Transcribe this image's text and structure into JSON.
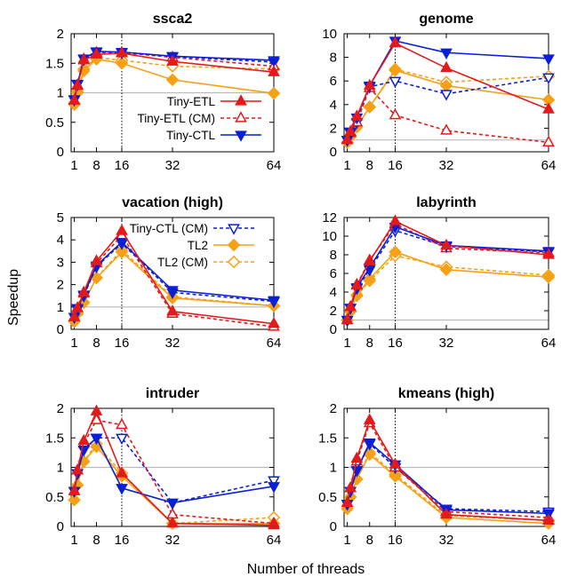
{
  "figure": {
    "ylabel": "Speedup",
    "xlabel": "Number of threads"
  },
  "colors": {
    "red": "#e31a1c",
    "blue": "#0a1fd6",
    "orange": "#f6a015",
    "baseline": "#bbbbbb",
    "marker_line": "#000000"
  },
  "legend": [
    {
      "name": "Tiny-ETL",
      "color": "#e31a1c",
      "dash": false,
      "marker": "triangle-up",
      "filled": true
    },
    {
      "name": "Tiny-ETL (CM)",
      "color": "#e31a1c",
      "dash": true,
      "marker": "triangle-up",
      "filled": false
    },
    {
      "name": "Tiny-CTL",
      "color": "#0a1fd6",
      "dash": false,
      "marker": "triangle-down",
      "filled": true
    },
    {
      "name": "Tiny-CTL (CM)",
      "color": "#0a1fd6",
      "dash": true,
      "marker": "triangle-down",
      "filled": false
    },
    {
      "name": "TL2",
      "color": "#f6a015",
      "dash": false,
      "marker": "diamond",
      "filled": true
    },
    {
      "name": "TL2 (CM)",
      "color": "#f6a015",
      "dash": true,
      "marker": "diamond",
      "filled": false
    }
  ],
  "chart_data": [
    {
      "type": "line",
      "title": "ssca2",
      "xlabel": "Number of threads",
      "ylabel": "Speedup",
      "x": [
        1,
        2,
        4,
        8,
        16,
        32,
        64
      ],
      "xticks": [
        1,
        8,
        16,
        32,
        64
      ],
      "xlim": [
        0,
        64
      ],
      "ylim": [
        0,
        2
      ],
      "yticks": [
        0,
        0.5,
        1,
        1.5,
        2
      ],
      "yticklabels": [
        "0",
        "0.5",
        "1",
        "1.5",
        "2"
      ],
      "reference_line_y": 1,
      "marker_line_x": 16,
      "legend_entries": [
        "Tiny-ETL",
        "Tiny-ETL (CM)",
        "Tiny-CTL"
      ],
      "series": [
        {
          "name": "Tiny-ETL",
          "values": [
            0.87,
            1.12,
            1.55,
            1.65,
            1.67,
            1.53,
            1.35
          ]
        },
        {
          "name": "Tiny-ETL (CM)",
          "values": [
            0.87,
            1.13,
            1.57,
            1.68,
            1.68,
            1.6,
            1.45
          ]
        },
        {
          "name": "Tiny-CTL",
          "values": [
            0.89,
            1.15,
            1.58,
            1.7,
            1.69,
            1.62,
            1.55
          ]
        },
        {
          "name": "Tiny-CTL (CM)",
          "values": [
            0.88,
            1.14,
            1.57,
            1.69,
            1.68,
            1.61,
            1.52
          ]
        },
        {
          "name": "TL2",
          "values": [
            0.8,
            1.0,
            1.37,
            1.57,
            1.5,
            1.22,
            0.99
          ]
        },
        {
          "name": "TL2 (CM)",
          "values": [
            0.82,
            1.02,
            1.4,
            1.6,
            1.55,
            1.45,
            1.4
          ]
        }
      ]
    },
    {
      "type": "line",
      "title": "genome",
      "xlabel": "Number of threads",
      "ylabel": "Speedup",
      "x": [
        1,
        2,
        4,
        8,
        16,
        32,
        64
      ],
      "xticks": [
        1,
        8,
        16,
        32,
        64
      ],
      "xlim": [
        0,
        64
      ],
      "ylim": [
        0,
        10
      ],
      "yticks": [
        0,
        2,
        4,
        6,
        8,
        10
      ],
      "yticklabels": [
        "0",
        "2",
        "4",
        "6",
        "8",
        "10"
      ],
      "reference_line_y": 1,
      "marker_line_x": 16,
      "series": [
        {
          "name": "Tiny-ETL",
          "values": [
            1.0,
            1.7,
            3.0,
            5.6,
            9.2,
            7.1,
            3.6
          ]
        },
        {
          "name": "Tiny-ETL (CM)",
          "values": [
            1.0,
            1.6,
            2.5,
            5.4,
            3.1,
            1.8,
            0.8
          ]
        },
        {
          "name": "Tiny-CTL",
          "values": [
            1.0,
            1.7,
            2.9,
            5.6,
            9.4,
            8.4,
            7.9
          ]
        },
        {
          "name": "Tiny-CTL (CM)",
          "values": [
            1.0,
            1.6,
            2.5,
            5.5,
            6.0,
            4.9,
            6.3
          ]
        },
        {
          "name": "TL2",
          "values": [
            0.8,
            1.3,
            2.1,
            3.8,
            6.9,
            5.6,
            4.4
          ]
        },
        {
          "name": "TL2 (CM)",
          "values": [
            0.8,
            1.3,
            2.1,
            3.8,
            7.0,
            5.9,
            6.4
          ]
        }
      ]
    },
    {
      "type": "line",
      "title": "vacation (high)",
      "xlabel": "Number of threads",
      "ylabel": "Speedup",
      "x": [
        1,
        2,
        4,
        8,
        16,
        32,
        64
      ],
      "xticks": [
        1,
        8,
        16,
        32,
        64
      ],
      "xlim": [
        0,
        64
      ],
      "ylim": [
        0,
        5
      ],
      "yticks": [
        0,
        1,
        2,
        3,
        4,
        5
      ],
      "yticklabels": [
        "0",
        "1",
        "2",
        "3",
        "4",
        "5"
      ],
      "reference_line_y": 1,
      "marker_line_x": 16,
      "legend_entries": [
        "Tiny-CTL (CM)",
        "TL2",
        "TL2 (CM)"
      ],
      "series": [
        {
          "name": "Tiny-ETL",
          "values": [
            0.55,
            0.95,
            1.65,
            3.05,
            4.4,
            0.8,
            0.25
          ]
        },
        {
          "name": "Tiny-ETL (CM)",
          "values": [
            0.55,
            0.95,
            1.6,
            2.95,
            4.2,
            0.7,
            0.12
          ]
        },
        {
          "name": "Tiny-CTL",
          "values": [
            0.55,
            0.95,
            1.55,
            2.85,
            3.9,
            1.75,
            1.3
          ]
        },
        {
          "name": "Tiny-CTL (CM)",
          "values": [
            0.55,
            0.9,
            1.5,
            2.8,
            3.85,
            1.65,
            1.25
          ]
        },
        {
          "name": "TL2",
          "values": [
            0.35,
            0.7,
            1.2,
            2.3,
            3.45,
            1.4,
            1.05
          ]
        },
        {
          "name": "TL2 (CM)",
          "values": [
            0.35,
            0.7,
            1.2,
            2.3,
            3.55,
            1.45,
            1.05
          ]
        }
      ]
    },
    {
      "type": "line",
      "title": "labyrinth",
      "xlabel": "Number of threads",
      "ylabel": "Speedup",
      "x": [
        1,
        2,
        4,
        8,
        16,
        32,
        64
      ],
      "xticks": [
        1,
        8,
        16,
        32,
        64
      ],
      "xlim": [
        0,
        64
      ],
      "ylim": [
        0,
        12
      ],
      "yticks": [
        0,
        2,
        4,
        6,
        8,
        10,
        12
      ],
      "yticklabels": [
        "0",
        "2",
        "4",
        "6",
        "8",
        "10",
        "12"
      ],
      "reference_line_y": 1,
      "marker_line_x": 16,
      "series": [
        {
          "name": "Tiny-ETL",
          "values": [
            1.0,
            2.4,
            4.7,
            7.3,
            11.6,
            9.0,
            8.0
          ]
        },
        {
          "name": "Tiny-ETL (CM)",
          "values": [
            1.0,
            2.4,
            4.8,
            7.4,
            11.3,
            8.7,
            8.2
          ]
        },
        {
          "name": "Tiny-CTL",
          "values": [
            1.0,
            2.3,
            4.5,
            6.6,
            11.0,
            9.0,
            8.4
          ]
        },
        {
          "name": "Tiny-CTL (CM)",
          "values": [
            1.0,
            2.3,
            4.4,
            6.4,
            10.6,
            8.9,
            8.3
          ]
        },
        {
          "name": "TL2",
          "values": [
            1.0,
            1.9,
            3.7,
            5.4,
            8.3,
            6.4,
            5.6
          ]
        },
        {
          "name": "TL2 (CM)",
          "values": [
            1.0,
            1.9,
            3.6,
            5.2,
            7.9,
            6.7,
            5.8
          ]
        }
      ]
    },
    {
      "type": "line",
      "title": "intruder",
      "xlabel": "Number of threads",
      "ylabel": "Speedup",
      "x": [
        1,
        2,
        4,
        8,
        16,
        32,
        64
      ],
      "xticks": [
        1,
        8,
        16,
        32,
        64
      ],
      "xlim": [
        0,
        64
      ],
      "ylim": [
        0,
        2
      ],
      "yticks": [
        0,
        0.5,
        1,
        1.5,
        2
      ],
      "yticklabels": [
        "0",
        "0.5",
        "1",
        "1.5",
        "2"
      ],
      "reference_line_y": 1,
      "marker_line_x": 16,
      "series": [
        {
          "name": "Tiny-ETL",
          "values": [
            0.6,
            0.95,
            1.45,
            1.95,
            0.9,
            0.05,
            0.02
          ]
        },
        {
          "name": "Tiny-ETL (CM)",
          "values": [
            0.6,
            0.95,
            1.4,
            1.8,
            1.72,
            0.2,
            0.05
          ]
        },
        {
          "name": "Tiny-CTL",
          "values": [
            0.6,
            0.9,
            1.3,
            1.5,
            0.65,
            0.4,
            0.68
          ]
        },
        {
          "name": "Tiny-CTL (CM)",
          "values": [
            0.6,
            0.9,
            1.3,
            1.5,
            1.5,
            0.4,
            0.78
          ]
        },
        {
          "name": "TL2",
          "values": [
            0.45,
            0.7,
            1.1,
            1.35,
            0.85,
            0.05,
            0.05
          ]
        },
        {
          "name": "TL2 (CM)",
          "values": [
            0.45,
            0.7,
            1.1,
            1.4,
            0.9,
            0.05,
            0.15
          ]
        }
      ]
    },
    {
      "type": "line",
      "title": "kmeans (high)",
      "xlabel": "Number of threads",
      "ylabel": "Speedup",
      "x": [
        1,
        2,
        4,
        8,
        16,
        32,
        64
      ],
      "xticks": [
        1,
        8,
        16,
        32,
        64
      ],
      "xlim": [
        0,
        64
      ],
      "ylim": [
        0,
        2
      ],
      "yticks": [
        0,
        0.5,
        1,
        1.5,
        2
      ],
      "yticklabels": [
        "0",
        "0.5",
        "1",
        "1.5",
        "2"
      ],
      "reference_line_y": 1,
      "marker_line_x": 16,
      "series": [
        {
          "name": "Tiny-ETL",
          "values": [
            0.4,
            0.65,
            1.15,
            1.8,
            1.05,
            0.2,
            0.1
          ]
        },
        {
          "name": "Tiny-ETL (CM)",
          "values": [
            0.4,
            0.65,
            1.1,
            1.75,
            1.0,
            0.25,
            0.15
          ]
        },
        {
          "name": "Tiny-CTL",
          "values": [
            0.38,
            0.6,
            0.95,
            1.42,
            1.05,
            0.28,
            0.22
          ]
        },
        {
          "name": "Tiny-CTL (CM)",
          "values": [
            0.38,
            0.6,
            0.95,
            1.4,
            1.0,
            0.3,
            0.25
          ]
        },
        {
          "name": "TL2",
          "values": [
            0.3,
            0.5,
            0.8,
            1.22,
            0.85,
            0.15,
            0.05
          ]
        },
        {
          "name": "TL2 (CM)",
          "values": [
            0.3,
            0.5,
            0.8,
            1.25,
            0.88,
            0.18,
            0.1
          ]
        }
      ]
    }
  ]
}
